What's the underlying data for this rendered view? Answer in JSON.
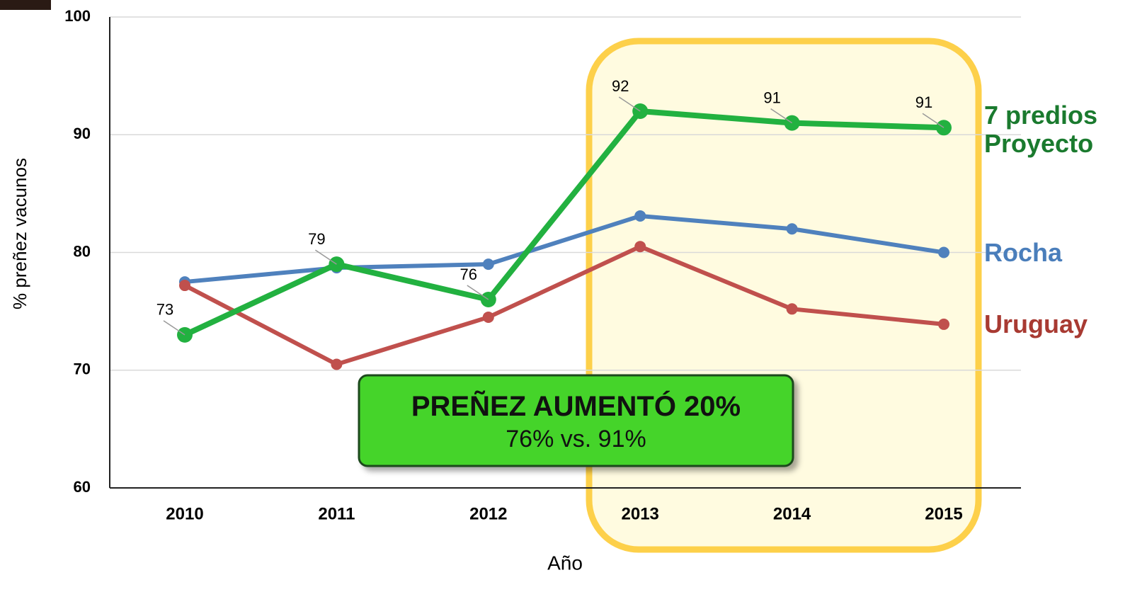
{
  "chart_data": {
    "type": "line",
    "y_label": "% preñez vacunos",
    "x_label": "Año",
    "categories": [
      "2010",
      "2011",
      "2012",
      "2013",
      "2014",
      "2015"
    ],
    "series": [
      {
        "name": "Rocha",
        "color": "#4f81bd",
        "label_color": "#4a7ebb",
        "values": [
          77.5,
          78.7,
          79.0,
          83.1,
          82.0,
          80.0
        ]
      },
      {
        "name": "Uruguay",
        "color": "#c0504d",
        "label_color": "#a83a32",
        "values": [
          77.2,
          70.5,
          74.5,
          80.5,
          75.2,
          73.9
        ]
      },
      {
        "name": "7 predios Proyecto",
        "color": "#22b140",
        "label_color": "#1a7a2e",
        "values": [
          73,
          79,
          76,
          92,
          91,
          90.6
        ],
        "value_labels": [
          "73",
          "79",
          "76",
          "92",
          "91",
          "91"
        ]
      }
    ],
    "ylim": [
      60,
      100
    ],
    "yticks": [
      60,
      70,
      80,
      90,
      100
    ],
    "grid": true,
    "annotations": [
      "PREÑEZ AUMENTÓ 20%",
      "76% vs. 91%"
    ]
  }
}
